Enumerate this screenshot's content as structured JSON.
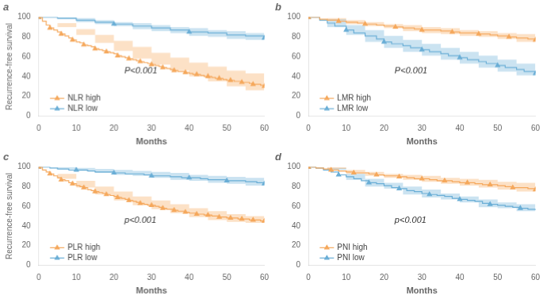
{
  "chart_data": [
    {
      "type": "step",
      "title": "a",
      "annotations": [
        "P<0.001"
      ],
      "xlabel": "Months",
      "ylabel": "Recurrence-free survival",
      "xlim": [
        0,
        60
      ],
      "ylim": [
        0,
        100
      ],
      "xticks": [
        0,
        10,
        20,
        30,
        40,
        50,
        60
      ],
      "yticks": [
        0,
        20,
        40,
        60,
        80,
        100
      ],
      "grid": false,
      "legend": "lower left",
      "series": [
        {
          "name": "NLR high",
          "color": "#F5A85C",
          "marker": "triangle",
          "x": [
            0,
            1,
            2,
            3,
            4,
            5,
            6,
            7,
            8,
            9,
            10,
            11,
            12,
            13,
            14,
            15,
            16,
            17,
            18,
            19,
            20,
            21,
            22,
            23,
            24,
            25,
            26,
            27,
            28,
            29,
            30,
            31,
            32,
            33,
            34,
            35,
            36,
            37,
            38,
            39,
            40,
            41,
            42,
            43,
            44,
            45,
            46,
            47,
            48,
            49,
            50,
            51,
            52,
            53,
            54,
            55,
            56,
            57,
            58,
            59,
            60
          ],
          "values": [
            100,
            96,
            92,
            89,
            87,
            85,
            83,
            81,
            79,
            77,
            75,
            74,
            72,
            71,
            70,
            68,
            67,
            66,
            65,
            64,
            63,
            61,
            60,
            59,
            58,
            57,
            56,
            55,
            54,
            53,
            52,
            51,
            50,
            49,
            48,
            47,
            46,
            45,
            45,
            44,
            43,
            42,
            42,
            41,
            40,
            40,
            39,
            38,
            38,
            37,
            36,
            36,
            35,
            35,
            34,
            34,
            33,
            32,
            32,
            31,
            30
          ],
          "ci": {
            "x": [
              0,
              5,
              10,
              15,
              20,
              25,
              30,
              35,
              40,
              45,
              50,
              55,
              60
            ],
            "upper": [
              100,
              94,
              88,
              82,
              76,
              70,
              64,
              59,
              54,
              50,
              46,
              43,
              40
            ],
            "lower": [
              100,
              90,
              82,
              74,
              66,
              58,
              52,
              46,
              40,
              35,
              30,
              26,
              22
            ]
          }
        },
        {
          "name": "NLR low",
          "color": "#6AAED6",
          "marker": "triangle",
          "x": [
            0,
            5,
            10,
            15,
            20,
            25,
            30,
            35,
            40,
            45,
            50,
            55,
            60
          ],
          "values": [
            100,
            99,
            97,
            95,
            93,
            91,
            89,
            87,
            85,
            84,
            82,
            81,
            79
          ],
          "ci": {
            "x": [
              0,
              5,
              10,
              15,
              20,
              25,
              30,
              35,
              40,
              45,
              50,
              55,
              60
            ],
            "upper": [
              100,
              100,
              99,
              97,
              95,
              94,
              92,
              90,
              89,
              87,
              86,
              84,
              83
            ],
            "lower": [
              100,
              98,
              95,
              93,
              91,
              88,
              86,
              84,
              81,
              80,
              78,
              77,
              72
            ]
          }
        }
      ]
    },
    {
      "type": "step",
      "title": "b",
      "annotations": [
        "P<0.001"
      ],
      "xlabel": "Months",
      "xlim": [
        0,
        60
      ],
      "ylim": [
        0,
        100
      ],
      "xticks": [
        0,
        10,
        20,
        30,
        40,
        50,
        60
      ],
      "yticks": [
        0,
        20,
        40,
        60,
        80,
        100
      ],
      "grid": false,
      "legend": "lower left",
      "series": [
        {
          "name": "LMR high",
          "color": "#F5A85C",
          "marker": "triangle",
          "x": [
            0,
            3,
            5,
            8,
            10,
            13,
            15,
            18,
            20,
            23,
            25,
            28,
            30,
            33,
            35,
            38,
            40,
            43,
            45,
            48,
            50,
            53,
            55,
            58,
            60
          ],
          "values": [
            100,
            98,
            97,
            96,
            95,
            94,
            93,
            92,
            91,
            90,
            89,
            88,
            87,
            87,
            86,
            85,
            84,
            84,
            83,
            82,
            81,
            80,
            79,
            78,
            77
          ],
          "ci": {
            "x": [
              0,
              5,
              10,
              15,
              20,
              25,
              30,
              35,
              40,
              45,
              50,
              55,
              60
            ],
            "upper": [
              100,
              99,
              97,
              95,
              93,
              92,
              90,
              89,
              87,
              86,
              84,
              83,
              82
            ],
            "lower": [
              100,
              97,
              93,
              91,
              89,
              86,
              84,
              83,
              81,
              80,
              78,
              75,
              72
            ]
          }
        },
        {
          "name": "LMR low",
          "color": "#6AAED6",
          "marker": "triangle",
          "x": [
            0,
            3,
            5,
            7,
            10,
            12,
            15,
            18,
            20,
            22,
            25,
            27,
            30,
            32,
            35,
            37,
            40,
            42,
            45,
            47,
            50,
            52,
            55,
            57,
            60
          ],
          "values": [
            100,
            97,
            94,
            91,
            87,
            84,
            81,
            78,
            75,
            73,
            71,
            69,
            67,
            65,
            63,
            61,
            59,
            57,
            55,
            53,
            51,
            49,
            47,
            45,
            43
          ],
          "ci": {
            "x": [
              0,
              5,
              10,
              15,
              20,
              25,
              30,
              35,
              40,
              45,
              50,
              55,
              60
            ],
            "upper": [
              100,
              98,
              92,
              87,
              81,
              77,
              73,
              69,
              65,
              61,
              57,
              53,
              50
            ],
            "lower": [
              100,
              90,
              82,
              75,
              69,
              65,
              61,
              57,
              53,
              49,
              45,
              41,
              36
            ]
          }
        }
      ]
    },
    {
      "type": "step",
      "title": "c",
      "annotations": [
        "p<0.001"
      ],
      "xlabel": "Months",
      "ylabel": "Recurrence-free survival",
      "xlim": [
        0,
        60
      ],
      "ylim": [
        0,
        100
      ],
      "xticks": [
        0,
        10,
        20,
        30,
        40,
        50,
        60
      ],
      "yticks": [
        0,
        20,
        40,
        60,
        80,
        100
      ],
      "grid": false,
      "legend": "lower left",
      "series": [
        {
          "name": "PLR high",
          "color": "#F5A85C",
          "marker": "triangle",
          "x": [
            0,
            1,
            2,
            3,
            4,
            5,
            6,
            7,
            8,
            9,
            10,
            11,
            12,
            13,
            14,
            15,
            16,
            17,
            18,
            19,
            20,
            21,
            22,
            23,
            24,
            25,
            26,
            27,
            28,
            29,
            30,
            31,
            32,
            33,
            34,
            35,
            36,
            37,
            38,
            39,
            40,
            41,
            42,
            43,
            44,
            45,
            46,
            47,
            48,
            49,
            50,
            51,
            52,
            53,
            54,
            55,
            56,
            57,
            58,
            59,
            60
          ],
          "values": [
            100,
            97,
            95,
            93,
            91,
            89,
            87,
            86,
            84,
            83,
            81,
            80,
            79,
            77,
            76,
            75,
            74,
            73,
            72,
            71,
            70,
            69,
            68,
            67,
            66,
            65,
            64,
            63,
            62,
            61,
            61,
            60,
            59,
            58,
            57,
            57,
            56,
            55,
            55,
            54,
            53,
            53,
            52,
            52,
            51,
            51,
            50,
            50,
            49,
            49,
            48,
            48,
            48,
            47,
            47,
            47,
            46,
            46,
            46,
            45,
            45
          ],
          "ci": {
            "x": [
              0,
              5,
              10,
              15,
              20,
              25,
              30,
              35,
              40,
              45,
              50,
              55,
              60
            ],
            "upper": [
              100,
              93,
              86,
              80,
              75,
              70,
              66,
              62,
              58,
              55,
              52,
              50,
              48
            ],
            "lower": [
              100,
              88,
              79,
              72,
              66,
              61,
              57,
              53,
              49,
              46,
              44,
              43,
              42
            ]
          }
        },
        {
          "name": "PLR low",
          "color": "#6AAED6",
          "marker": "triangle",
          "x": [
            0,
            3,
            5,
            8,
            10,
            13,
            15,
            18,
            20,
            23,
            25,
            28,
            30,
            33,
            35,
            38,
            40,
            43,
            45,
            48,
            50,
            53,
            55,
            58,
            60
          ],
          "values": [
            100,
            99,
            98,
            97,
            97,
            96,
            95,
            95,
            94,
            93,
            93,
            92,
            91,
            91,
            90,
            89,
            89,
            88,
            87,
            87,
            86,
            86,
            85,
            84,
            83
          ],
          "ci": {
            "x": [
              0,
              5,
              10,
              15,
              20,
              25,
              30,
              35,
              40,
              45,
              50,
              55,
              60
            ],
            "upper": [
              100,
              100,
              99,
              98,
              97,
              96,
              95,
              94,
              92,
              91,
              90,
              89,
              88
            ],
            "lower": [
              100,
              98,
              96,
              94,
              92,
              91,
              89,
              87,
              86,
              84,
              83,
              81,
              79
            ]
          }
        }
      ]
    },
    {
      "type": "step",
      "title": "d",
      "annotations": [
        "p<0.001"
      ],
      "xlabel": "Months",
      "xlim": [
        0,
        60
      ],
      "ylim": [
        0,
        100
      ],
      "xticks": [
        0,
        10,
        20,
        30,
        40,
        50,
        60
      ],
      "yticks": [
        0,
        20,
        40,
        60,
        80,
        100
      ],
      "grid": false,
      "legend": "lower left",
      "series": [
        {
          "name": "PNI high",
          "color": "#F5A85C",
          "marker": "triangle",
          "x": [
            0,
            2,
            4,
            6,
            8,
            10,
            12,
            14,
            16,
            18,
            20,
            22,
            24,
            26,
            28,
            30,
            32,
            34,
            36,
            38,
            40,
            42,
            44,
            46,
            48,
            50,
            52,
            54,
            56,
            58,
            60
          ],
          "values": [
            100,
            99,
            98,
            97,
            96,
            95,
            94,
            94,
            93,
            92,
            91,
            91,
            90,
            89,
            88,
            88,
            87,
            86,
            86,
            85,
            84,
            84,
            83,
            82,
            82,
            81,
            80,
            79,
            79,
            78,
            77
          ],
          "ci": {
            "x": [
              0,
              5,
              10,
              15,
              20,
              25,
              30,
              35,
              40,
              45,
              50,
              55,
              60
            ],
            "upper": [
              100,
              100,
              97,
              95,
              93,
              92,
              91,
              89,
              88,
              87,
              85,
              84,
              83
            ],
            "lower": [
              100,
              98,
              93,
              91,
              89,
              87,
              85,
              83,
              81,
              79,
              77,
              75,
              72
            ]
          }
        },
        {
          "name": "PNI low",
          "color": "#6AAED6",
          "marker": "triangle",
          "x": [
            0,
            2,
            4,
            6,
            8,
            10,
            12,
            14,
            16,
            18,
            20,
            22,
            24,
            26,
            28,
            30,
            32,
            34,
            36,
            38,
            40,
            42,
            44,
            46,
            48,
            50,
            52,
            54,
            56,
            58,
            60
          ],
          "values": [
            100,
            99,
            97,
            95,
            92,
            90,
            88,
            86,
            84,
            83,
            81,
            79,
            78,
            76,
            75,
            73,
            72,
            71,
            70,
            68,
            67,
            66,
            65,
            63,
            62,
            61,
            60,
            59,
            58,
            57,
            56
          ],
          "ci": {
            "x": [
              0,
              5,
              10,
              15,
              20,
              25,
              30,
              35,
              40,
              45,
              50,
              55,
              60
            ],
            "upper": [
              100,
              99,
              93,
              88,
              84,
              80,
              77,
              73,
              70,
              67,
              64,
              62,
              60
            ],
            "lower": [
              100,
              97,
              87,
              80,
              78,
              72,
              69,
              67,
              64,
              59,
              58,
              55,
              44
            ]
          }
        }
      ]
    }
  ]
}
